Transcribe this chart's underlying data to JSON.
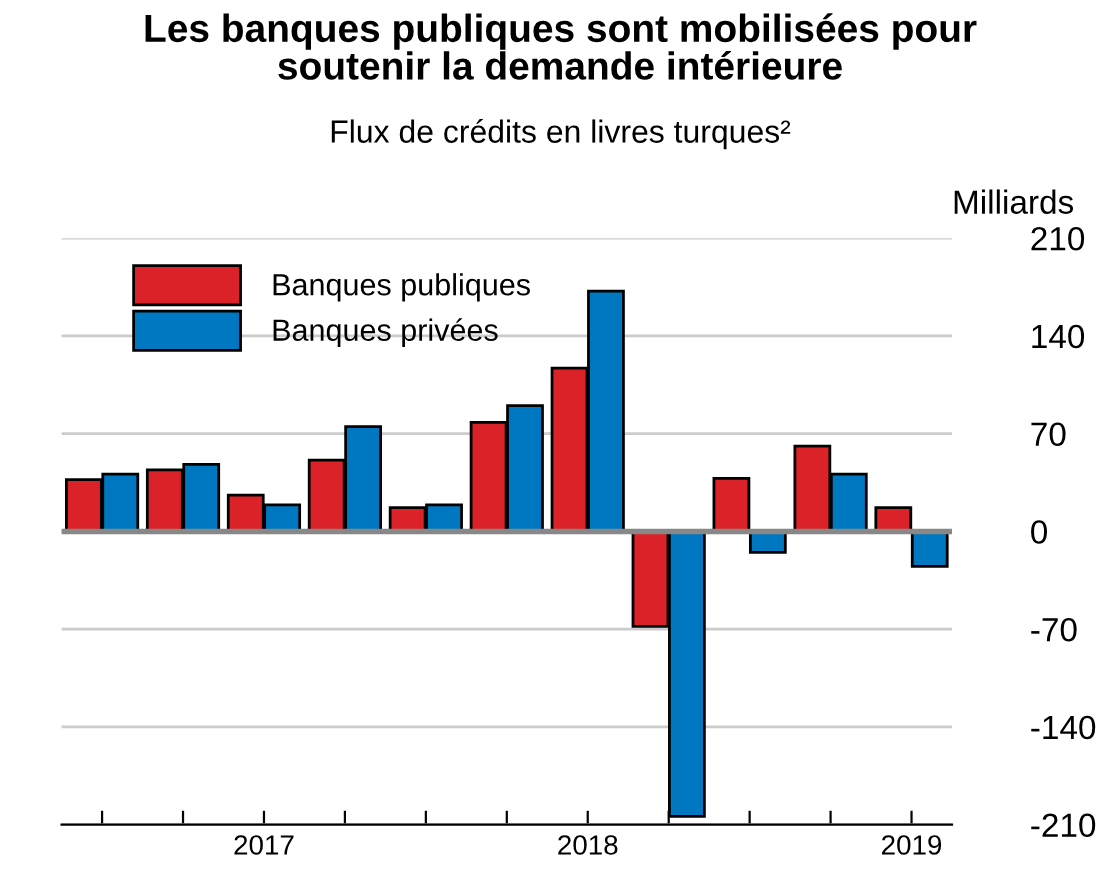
{
  "chart_data": {
    "type": "bar",
    "title": "Les banques publiques sont mobilisées pour\nsoutenir la demande intérieure",
    "subtitle": "Flux de crédits en livres turques²",
    "ylabel": "Milliards",
    "categories": [
      null,
      null,
      "2017",
      null,
      null,
      null,
      "2018",
      null,
      null,
      null,
      "2019"
    ],
    "series": [
      {
        "name": "Banques publiques",
        "color": "#dc2229",
        "values": [
          37,
          44,
          26,
          51,
          17,
          78,
          117,
          -68,
          38,
          61,
          17
        ]
      },
      {
        "name": "Banques privées",
        "color": "#0078c1",
        "values": [
          41,
          48,
          19,
          75,
          19,
          90,
          172,
          -204,
          -15,
          41,
          -25
        ]
      }
    ],
    "ylim": [
      -210,
      210
    ],
    "yticks": [
      -210,
      -140,
      -70,
      0,
      70,
      140,
      210
    ],
    "grid": "y",
    "legend": "top left"
  }
}
